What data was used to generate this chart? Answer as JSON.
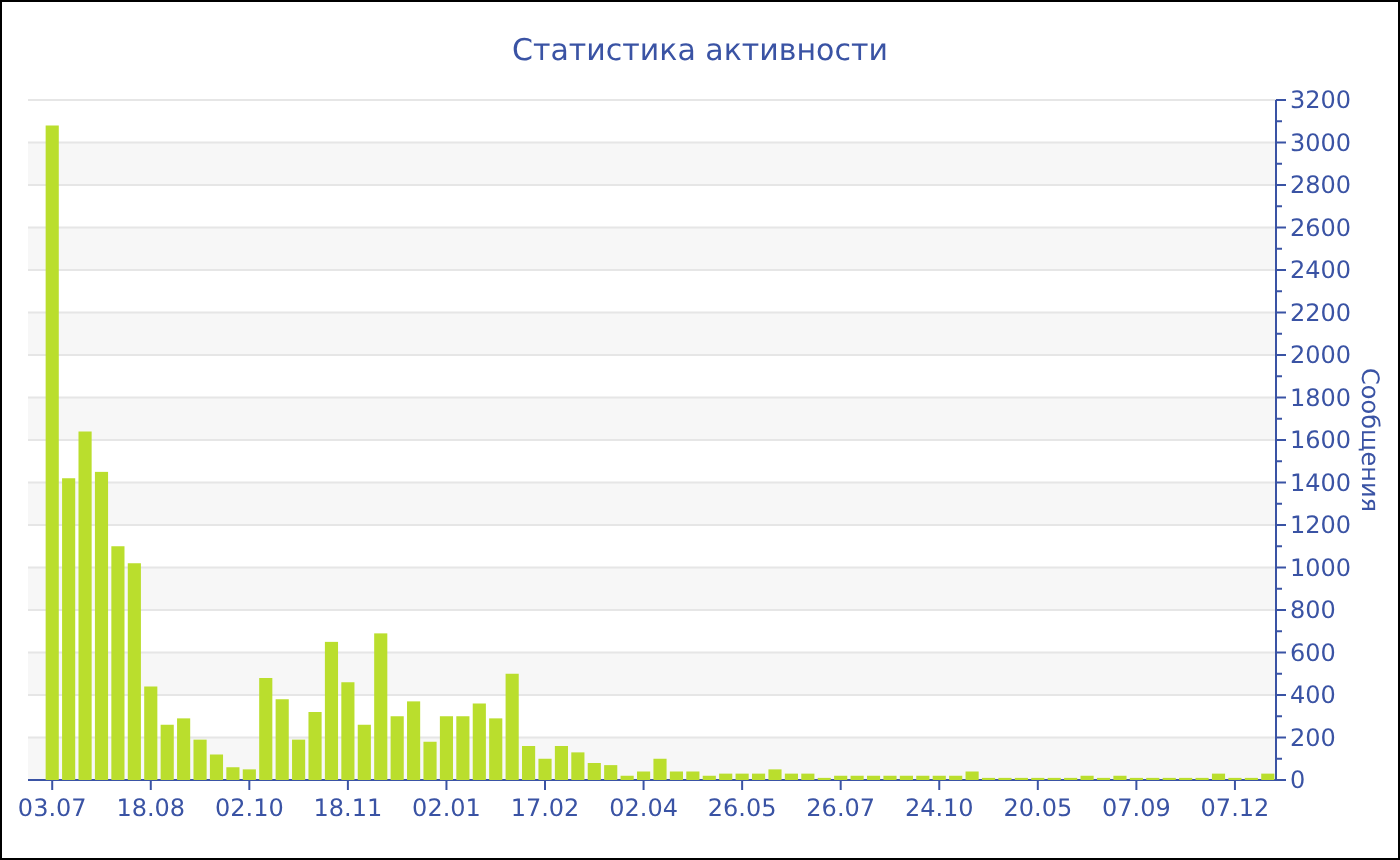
{
  "chart_data": {
    "type": "bar",
    "title": "Статистика активности",
    "ylabel": "Сообщения",
    "categories": [
      "03.07",
      null,
      null,
      null,
      null,
      null,
      "18.08",
      null,
      null,
      null,
      null,
      null,
      "02.10",
      null,
      null,
      null,
      null,
      null,
      "18.11",
      null,
      null,
      null,
      null,
      null,
      "02.01",
      null,
      null,
      null,
      null,
      null,
      "17.02",
      null,
      null,
      null,
      null,
      null,
      "02.04",
      null,
      null,
      null,
      null,
      null,
      "26.05",
      null,
      null,
      null,
      null,
      null,
      "26.07",
      null,
      null,
      null,
      null,
      null,
      "24.10",
      null,
      null,
      null,
      null,
      null,
      "20.05",
      null,
      null,
      null,
      null,
      null,
      "07.09",
      null,
      null,
      null,
      null,
      null,
      "07.12",
      null,
      null
    ],
    "values": [
      3080,
      1420,
      1640,
      1450,
      1100,
      1020,
      440,
      260,
      290,
      190,
      120,
      60,
      50,
      480,
      380,
      190,
      320,
      650,
      460,
      260,
      690,
      300,
      370,
      180,
      300,
      300,
      360,
      290,
      500,
      160,
      100,
      160,
      130,
      80,
      70,
      20,
      40,
      100,
      40,
      40,
      20,
      30,
      30,
      30,
      50,
      30,
      30,
      10,
      20,
      20,
      20,
      20,
      20,
      20,
      20,
      20,
      40,
      10,
      10,
      10,
      10,
      10,
      10,
      20,
      10,
      20,
      10,
      10,
      10,
      10,
      10,
      30,
      10,
      10,
      30
    ],
    "color": "#bade2d",
    "ylim": [
      0,
      3200
    ],
    "yticks": [
      0,
      {
        "value": 100,
        "label": null
      },
      200,
      {
        "value": 300,
        "label": null
      },
      400,
      {
        "value": 500,
        "label": null
      },
      600,
      {
        "value": 700,
        "label": null
      },
      800,
      {
        "value": 900,
        "label": null
      },
      1000,
      {
        "value": 1100,
        "label": null
      },
      1200,
      {
        "value": 1300,
        "label": null
      },
      1400,
      {
        "value": 1500,
        "label": null
      },
      1600,
      {
        "value": 1700,
        "label": null
      },
      1800,
      {
        "value": 1900,
        "label": null
      },
      2000,
      {
        "value": 2100,
        "label": null
      },
      2200,
      {
        "value": 2300,
        "label": null
      },
      2400,
      {
        "value": 2500,
        "label": null
      },
      2600,
      {
        "value": 2700,
        "label": null
      },
      2800,
      {
        "value": 2900,
        "label": null
      },
      3000,
      {
        "value": 3100,
        "label": null
      },
      3200
    ],
    "grid": "y"
  }
}
